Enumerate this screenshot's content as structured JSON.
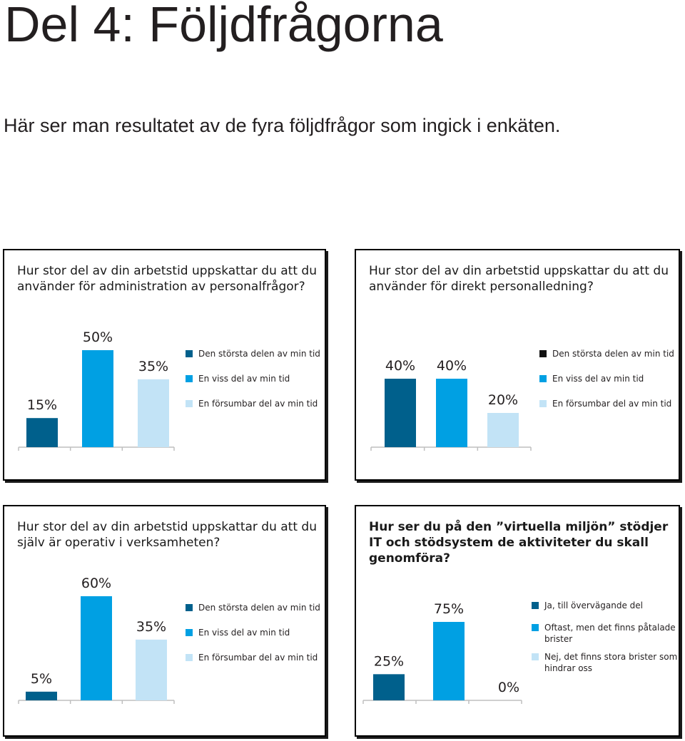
{
  "title": "Del 4: Följdfrågorna",
  "subtitle": "Här ser man resultatet av de fyra följdfrågor som ingick i enkäten.",
  "colors": {
    "dark_blue": "#00608c",
    "mid_blue": "#00a0e3",
    "light_blue": "#c2e3f6",
    "black": "#111111"
  },
  "chart_data": [
    {
      "type": "bar",
      "title": "Hur stor del av din arbetstid uppskattar du att du använder för administration av personalfrågor?",
      "categories": [
        "Den största delen av min tid",
        "En viss del av min tid",
        "En försumbar del av min tid"
      ],
      "values": [
        15,
        50,
        35
      ],
      "value_labels": [
        "15%",
        "50%",
        "35%"
      ],
      "colors": [
        "#00608c",
        "#00a0e3",
        "#c2e3f6"
      ],
      "legend_colors": [
        "#00608c",
        "#00a0e3",
        "#c2e3f6"
      ],
      "ylim": [
        0,
        50
      ],
      "legend": "right",
      "grid": false
    },
    {
      "type": "bar",
      "title": "Hur stor del av din arbetstid uppskattar du att du använder för direkt personalledning?",
      "categories": [
        "Den största delen av min tid",
        "En viss del av min tid",
        "En försumbar del av min tid"
      ],
      "values": [
        40,
        40,
        20
      ],
      "value_labels": [
        "40%",
        "40%",
        "20%"
      ],
      "colors": [
        "#00608c",
        "#00a0e3",
        "#c2e3f6"
      ],
      "legend_colors": [
        "#111111",
        "#00a0e3",
        "#c2e3f6"
      ],
      "ylim": [
        0,
        40
      ],
      "legend": "right",
      "grid": false
    },
    {
      "type": "bar",
      "title": "Hur stor del av din arbetstid uppskattar du att du själv är operativ i verksamheten?",
      "categories": [
        "Den största delen av min tid",
        "En viss del av min tid",
        "En försumbar del av min tid"
      ],
      "values": [
        5,
        60,
        35
      ],
      "value_labels": [
        "5%",
        "60%",
        "35%"
      ],
      "colors": [
        "#00608c",
        "#00a0e3",
        "#c2e3f6"
      ],
      "legend_colors": [
        "#00608c",
        "#00a0e3",
        "#c2e3f6"
      ],
      "ylim": [
        0,
        60
      ],
      "legend": "right",
      "grid": false
    },
    {
      "type": "bar",
      "title": "Hur ser du på den ”virtuella miljön” stödjer IT och stödsystem de aktiviteter du skall genomföra?",
      "categories": [
        "Ja, till övervägande del",
        "Oftast, men det finns påtalade brister",
        "Nej, det finns stora brister som hindrar oss"
      ],
      "values": [
        25,
        75,
        0
      ],
      "value_labels": [
        "25%",
        "75%",
        "0%"
      ],
      "colors": [
        "#00608c",
        "#00a0e3",
        "#c2e3f6"
      ],
      "legend_colors": [
        "#00608c",
        "#00a0e3",
        "#c2e3f6"
      ],
      "ylim": [
        0,
        75
      ],
      "legend": "right",
      "grid": false
    }
  ]
}
